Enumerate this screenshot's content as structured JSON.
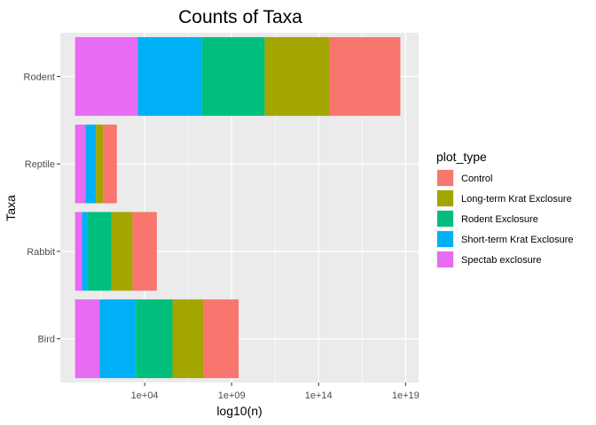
{
  "chart_data": {
    "type": "bar",
    "orientation": "horizontal",
    "stacked": true,
    "title": "Counts of Taxa",
    "xlabel": "log10(n)",
    "ylabel": "Taxa",
    "x_scale": "log10",
    "xlim": [
      1,
      1e+19
    ],
    "x_ticks": [
      "1e+04",
      "1e+09",
      "1e+14",
      "1e+19"
    ],
    "x_tick_values": [
      10000.0,
      1000000000.0,
      100000000000000.0,
      1e+19
    ],
    "categories": [
      "Bird",
      "Rabbit",
      "Reptile",
      "Rodent"
    ],
    "grid": true,
    "legend_position": "right",
    "legend_title": "plot_type",
    "series": [
      {
        "name": "Spectab exclosure",
        "color": "#E76BF3",
        "values": [
          1.4,
          0.4,
          0.6,
          3.6
        ]
      },
      {
        "name": "Short-term Krat Exclosure",
        "color": "#00B0F6",
        "values": [
          2.1,
          0.3,
          0.6,
          3.7
        ]
      },
      {
        "name": "Rodent Exclosure",
        "color": "#00BF7D",
        "values": [
          2.1,
          1.4,
          0.0,
          3.6
        ]
      },
      {
        "name": "Long-term Krat Exclosure",
        "color": "#A3A500",
        "values": [
          1.8,
          1.2,
          0.4,
          3.7
        ]
      },
      {
        "name": "Control",
        "color": "#F8766D",
        "values": [
          2.0,
          1.4,
          0.8,
          4.1
        ]
      }
    ],
    "legend_order": [
      "Control",
      "Long-term Krat Exclosure",
      "Rodent Exclosure",
      "Short-term Krat Exclosure",
      "Spectab exclosure"
    ]
  }
}
